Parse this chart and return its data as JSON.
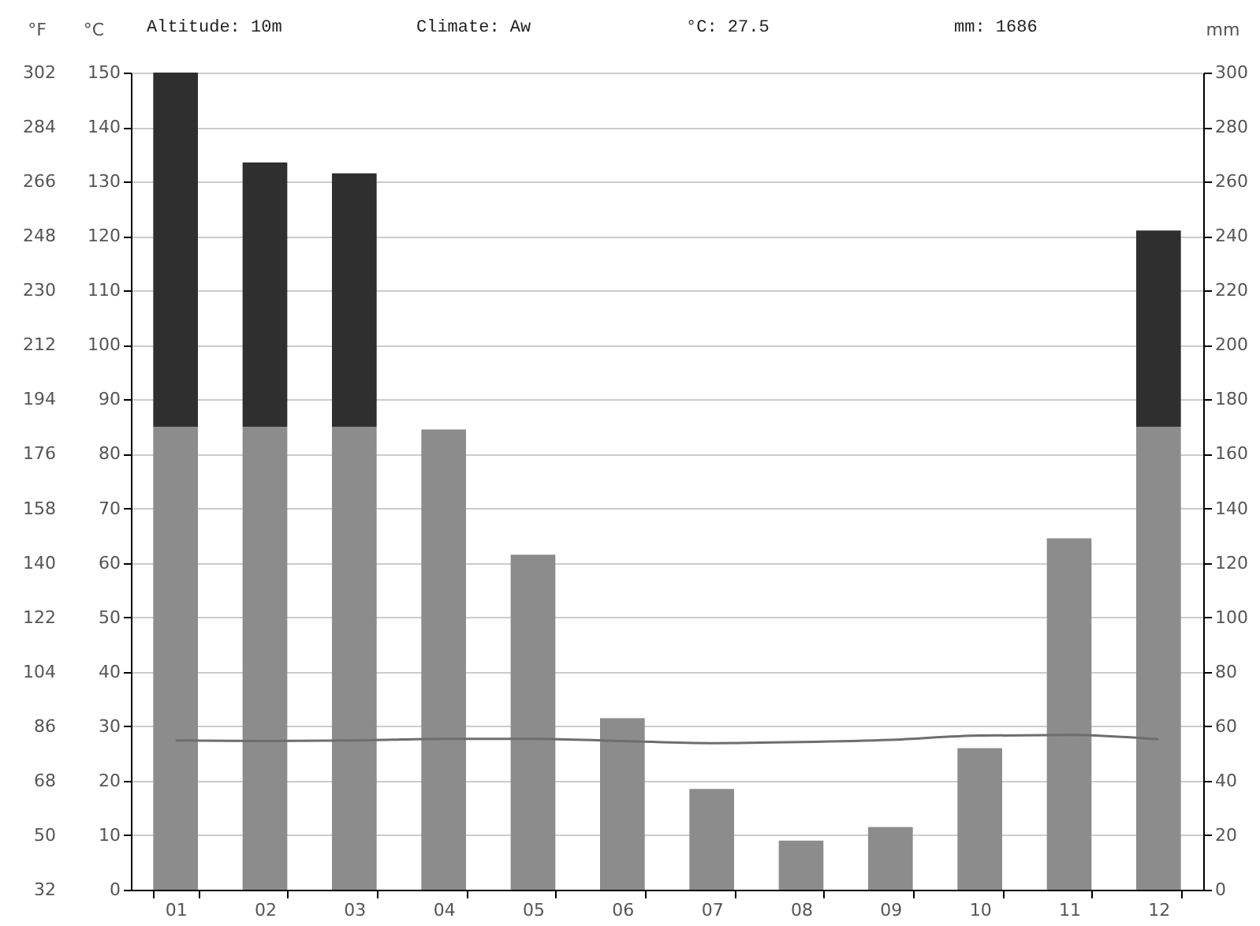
{
  "chart_data": {
    "type": "bar",
    "stacked": true,
    "annotations": [
      "Altitude: 10m",
      "Climate: Aw",
      "°C: 27.5",
      "mm: 1686"
    ],
    "categories": [
      "01",
      "02",
      "03",
      "04",
      "05",
      "06",
      "07",
      "08",
      "09",
      "10",
      "11",
      "12"
    ],
    "series": [
      {
        "color": "#8c8c8c",
        "axis": "y2",
        "values": [
          170,
          170,
          170,
          169,
          123,
          63,
          37,
          18,
          23,
          52,
          129,
          170
        ]
      },
      {
        "color": "#2f2f2f",
        "axis": "y2",
        "values": [
          130,
          97,
          93,
          null,
          null,
          null,
          null,
          null,
          null,
          null,
          null,
          72
        ]
      },
      {
        "type": "line",
        "color": "#6e6e6e",
        "axis": "y",
        "values": [
          27.4,
          27.3,
          27.4,
          27.7,
          27.7,
          27.3,
          26.9,
          27.1,
          27.5,
          28.3,
          28.4,
          27.6
        ]
      }
    ],
    "ylabel": "°C",
    "ylim": [
      0,
      150
    ],
    "yticks": [
      0,
      10,
      20,
      30,
      40,
      50,
      60,
      70,
      80,
      90,
      100,
      110,
      120,
      130,
      140,
      150
    ],
    "y2label": "mm",
    "y2lim": [
      0,
      300
    ],
    "y2ticks": [
      0,
      20,
      40,
      60,
      80,
      100,
      120,
      140,
      160,
      180,
      200,
      220,
      240,
      260,
      280,
      300
    ],
    "y3label": "°F",
    "y3lim": [
      32,
      302
    ],
    "y3ticks": [
      32,
      50,
      68,
      86,
      104,
      122,
      140,
      158,
      176,
      194,
      212,
      230,
      248,
      266,
      284,
      302
    ],
    "grid": "y"
  }
}
